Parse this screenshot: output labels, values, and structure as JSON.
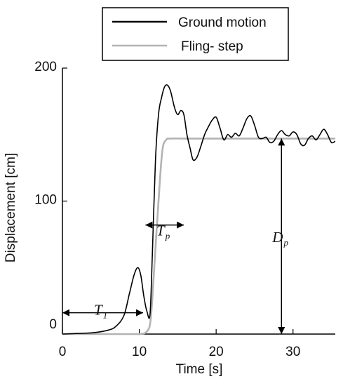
{
  "chart_data": {
    "type": "line",
    "xlabel": "Time [s]",
    "ylabel": "Displacement [cm]",
    "xlim": [
      0,
      35.5
    ],
    "ylim": [
      0,
      200
    ],
    "x_ticks": [
      0,
      10,
      20,
      30
    ],
    "y_ticks": [
      0,
      100,
      200
    ],
    "x_tick_labels": [
      "0",
      "10",
      "20",
      "30"
    ],
    "y_tick_labels": [
      "0",
      "100",
      "200"
    ],
    "grid": false,
    "legend_position": "top-center",
    "series": [
      {
        "name": "Ground motion",
        "color": "#000000",
        "x": [
          0,
          2,
          4,
          6,
          7,
          8,
          8.7,
          9.3,
          9.8,
          10.2,
          10.6,
          11.0,
          11.4,
          11.7,
          12.1,
          12.5,
          12.9,
          13.3,
          13.7,
          14.1,
          14.6,
          15.0,
          15.4,
          15.8,
          16.2,
          16.6,
          17.0,
          17.5,
          18.0,
          18.5,
          19.0,
          19.5,
          20.0,
          20.5,
          21.0,
          21.5,
          22.0,
          22.5,
          23.0,
          23.5,
          24.0,
          24.5,
          25.0,
          25.5,
          26.0,
          26.5,
          27.0,
          27.5,
          28.0,
          28.5,
          29.0,
          29.5,
          30.0,
          30.5,
          31.0,
          31.5,
          32.0,
          32.5,
          33.0,
          33.5,
          34.0,
          34.5,
          35.0,
          35.5
        ],
        "y": [
          0,
          0.5,
          1,
          3,
          6,
          14,
          30,
          44,
          50,
          44,
          28,
          17,
          15,
          60,
          130,
          165,
          178,
          186,
          187,
          182,
          170,
          165,
          168,
          165,
          150,
          140,
          131,
          133,
          141,
          150,
          156,
          161,
          163,
          155,
          146,
          150,
          148,
          151,
          149,
          155,
          162,
          164,
          157,
          148,
          147,
          148,
          144,
          145,
          150,
          153,
          150,
          149,
          152,
          150,
          143,
          142,
          147,
          149,
          146,
          150,
          154,
          150,
          144,
          145
        ]
      },
      {
        "name": "Fling- step",
        "color": "#b3b3b3",
        "x": [
          0,
          9,
          10,
          11,
          11.5,
          12.0,
          12.5,
          13.0,
          13.5,
          14.0,
          16,
          20,
          25,
          30,
          35.5
        ],
        "y": [
          0,
          0,
          0,
          2,
          12,
          55,
          100,
          138,
          146,
          147,
          147,
          147,
          147,
          147,
          147
        ]
      }
    ],
    "annotations": [
      {
        "label": "T",
        "subscript": "1",
        "from_x": 0,
        "to_x": 10.5,
        "at_y": 16
      },
      {
        "label": "T",
        "subscript": "p",
        "from_x": 10.8,
        "to_x": 15.8,
        "at_y": 82
      },
      {
        "label": "D",
        "subscript": "p",
        "x": 28.5,
        "from_y": 0,
        "to_y": 147
      }
    ]
  },
  "colors": {
    "axis": "#000000",
    "ground_motion": "#000000",
    "fling_step": "#b3b3b3"
  }
}
